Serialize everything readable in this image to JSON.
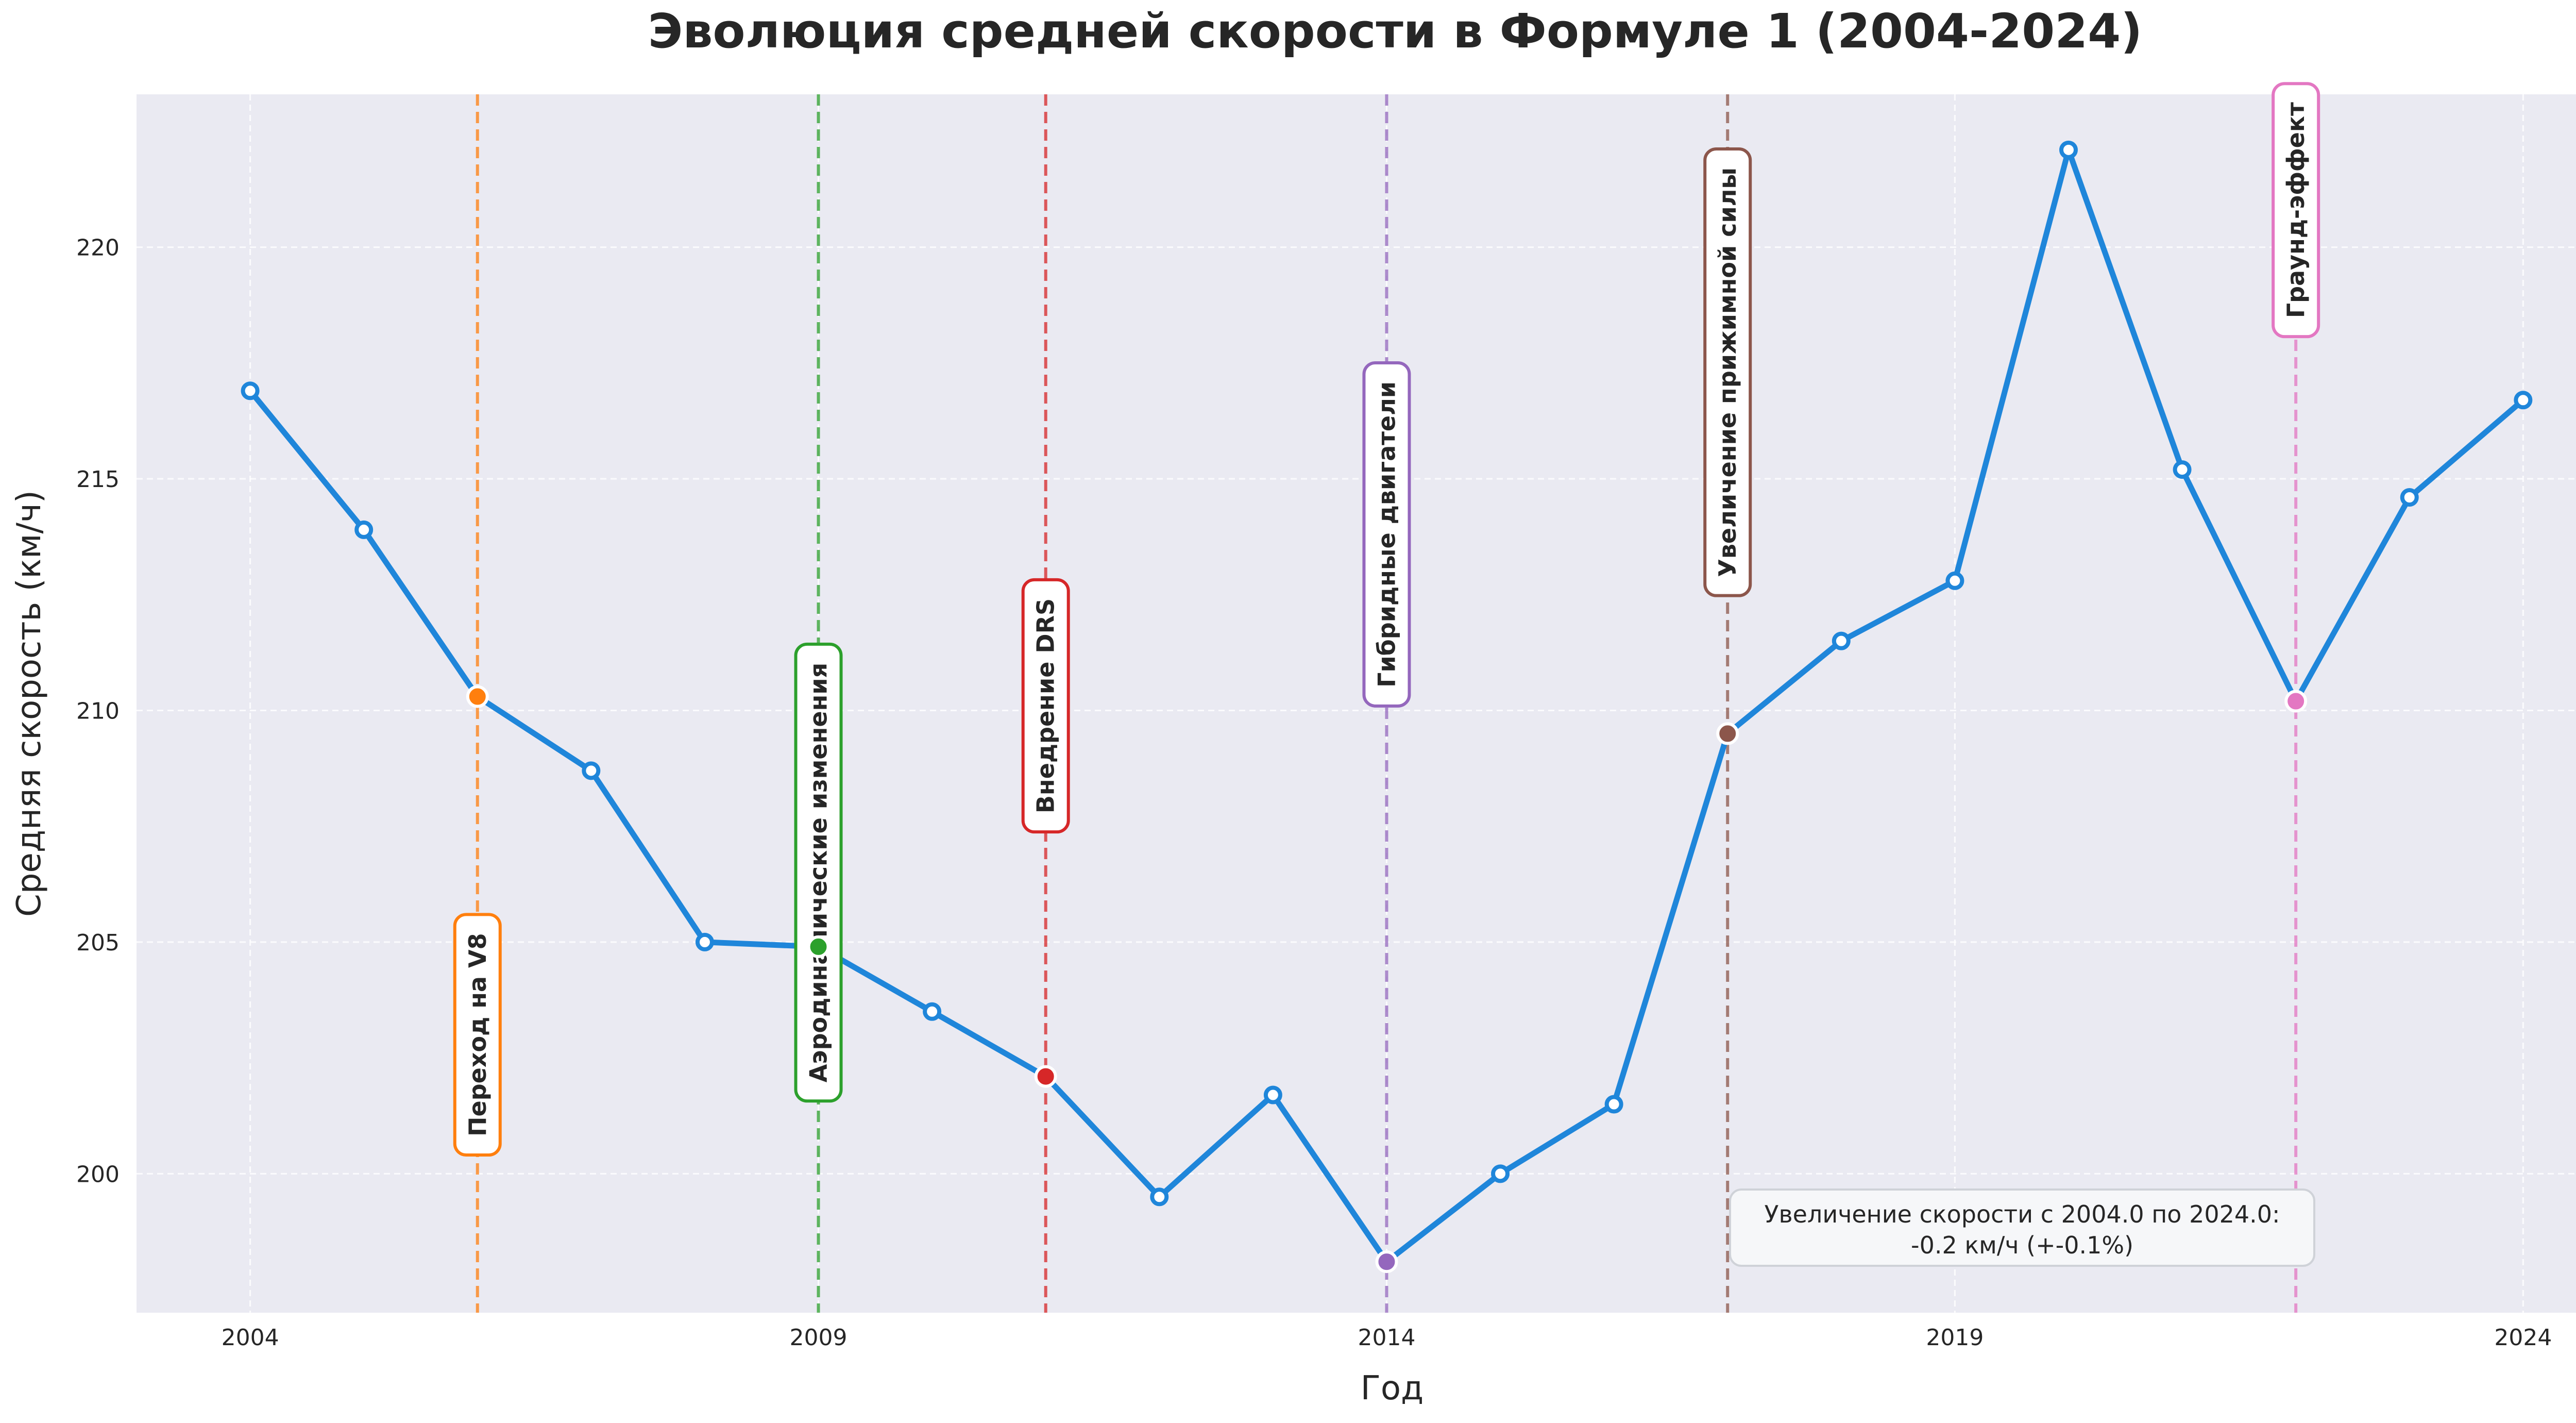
{
  "chart_data": {
    "type": "line",
    "title": "Эволюция средней скорости в Формуле 1 (2004-2024)",
    "xlabel": "Год",
    "ylabel": "Средняя скорость (км/ч)",
    "xlim": [
      2003,
      2025.1
    ],
    "ylim": [
      197,
      223.3
    ],
    "x_ticks": [
      2004,
      2009,
      2014,
      2019,
      2024
    ],
    "y_ticks": [
      200,
      205,
      210,
      215,
      220
    ],
    "grid": true,
    "line_color": "#1f86da",
    "series": [
      {
        "x": [
          2004,
          2005,
          2006,
          2007,
          2008,
          2009,
          2010,
          2011,
          2012,
          2013,
          2014,
          2015,
          2016,
          2017,
          2018,
          2019,
          2020,
          2021,
          2022,
          2023,
          2024
        ],
        "values": [
          216.9,
          213.9,
          210.3,
          208.7,
          205.0,
          204.9,
          203.5,
          202.1,
          199.5,
          201.7,
          198.1,
          200.0,
          201.5,
          209.5,
          211.5,
          212.8,
          222.1,
          215.2,
          210.2,
          214.6,
          216.7
        ]
      }
    ],
    "events": [
      {
        "year": 2006,
        "label": "Переход на V8",
        "color": "#ff7f0e",
        "label_y": 203
      },
      {
        "year": 2009,
        "label": "Аэродинамические изменения",
        "color": "#2ca02c",
        "label_y": 206.5
      },
      {
        "year": 2011,
        "label": "Внедрение DRS",
        "color": "#d62728",
        "label_y": 210.1
      },
      {
        "year": 2014,
        "label": "Гибридные двигатели",
        "color": "#9467bd",
        "label_y": 213.8
      },
      {
        "year": 2017,
        "label": "Увеличение прижимной силы",
        "color": "#8c564b",
        "label_y": 217.3
      },
      {
        "year": 2022,
        "label": "Граунд-эффект",
        "color": "#e377c2",
        "label_y": 220.8
      }
    ],
    "annotation": {
      "line1": "Увеличение скорости с 2004.0 по 2024.0:",
      "line2": "-0.2 км/ч (+-0.1%)"
    }
  }
}
